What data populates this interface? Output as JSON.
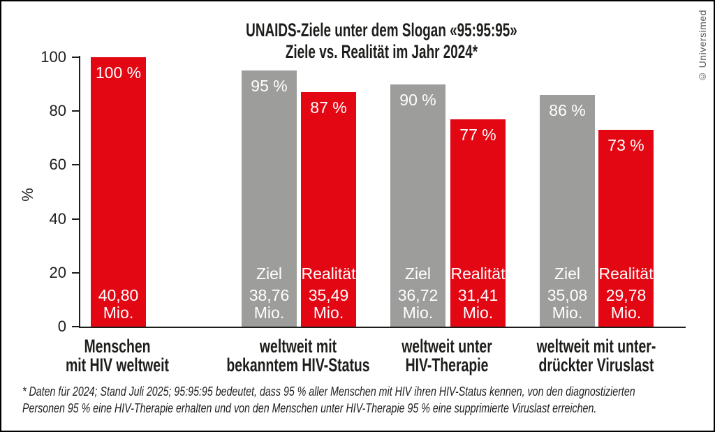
{
  "credit": "© Universimed",
  "header": {
    "title": "UNAIDS-Ziele unter dem Slogan «95:95:95»",
    "subtitle": "Ziele vs. Realität im Jahr 2024*"
  },
  "colors": {
    "target_gray": "#9d9d9c",
    "reality_red": "#e30613",
    "axis_black": "#1d1d1b",
    "credit_gray": "#575756"
  },
  "chart_data": {
    "type": "bar",
    "title": "UNAIDS-Ziele unter dem Slogan «95:95:95»",
    "subtitle": "Ziele vs. Realität im Jahr 2024*",
    "ylabel": "%",
    "ylim": [
      0,
      100
    ],
    "yticks": [
      0,
      20,
      40,
      60,
      80,
      100
    ],
    "grid": false,
    "groups": [
      {
        "category_lines": [
          "Menschen",
          "mit HIV weltweit"
        ],
        "bars": [
          {
            "series": "",
            "percent": 100,
            "percent_label": "100 %",
            "amount": "40,80",
            "unit": "Mio.",
            "color": "red"
          }
        ]
      },
      {
        "category_lines": [
          "weltweit mit",
          "bekanntem HIV-Status"
        ],
        "bars": [
          {
            "series": "Ziel",
            "percent": 95,
            "percent_label": "95 %",
            "amount": "38,76",
            "unit": "Mio.",
            "color": "gray"
          },
          {
            "series": "Realität",
            "percent": 87,
            "percent_label": "87 %",
            "amount": "35,49",
            "unit": "Mio.",
            "color": "red"
          }
        ]
      },
      {
        "category_lines": [
          "weltweit unter",
          "HIV-Therapie"
        ],
        "bars": [
          {
            "series": "Ziel",
            "percent": 90,
            "percent_label": "90 %",
            "amount": "36,72",
            "unit": "Mio.",
            "color": "gray"
          },
          {
            "series": "Realität",
            "percent": 77,
            "percent_label": "77 %",
            "amount": "31,41",
            "unit": "Mio.",
            "color": "red"
          }
        ]
      },
      {
        "category_lines": [
          "weltweit mit unter-",
          "drückter Viruslast"
        ],
        "bars": [
          {
            "series": "Ziel",
            "percent": 86,
            "percent_label": "86 %",
            "amount": "35,08",
            "unit": "Mio.",
            "color": "gray"
          },
          {
            "series": "Realität",
            "percent": 73,
            "percent_label": "73 %",
            "amount": "29,78",
            "unit": "Mio.",
            "color": "red"
          }
        ]
      }
    ]
  },
  "footnote": {
    "line1": "* Daten für 2024; Stand Juli 2025; 95:95:95 bedeutet, dass 95 % aller Menschen mit HIV ihren HIV-Status kennen, von den diagnostizierten",
    "line2": "Personen 95 % eine HIV-Therapie erhalten und von den Menschen unter HIV-Therapie 95 % eine supprimierte Viruslast erreichen."
  }
}
